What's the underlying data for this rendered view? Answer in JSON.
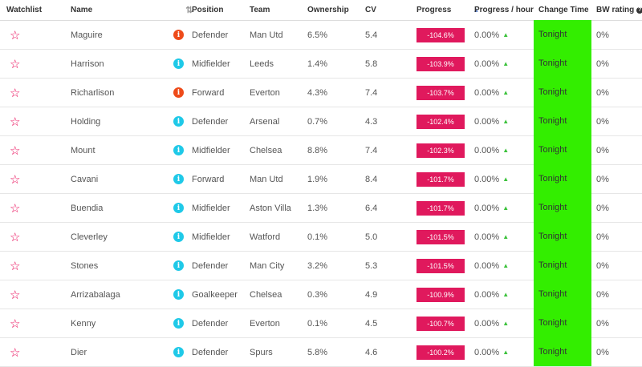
{
  "header": {
    "watchlist": "Watchlist",
    "name": "Name",
    "position": "Position",
    "team": "Team",
    "ownership": "Ownership",
    "cv": "CV",
    "progress": "Progress",
    "progress_hour": "Progress / hour",
    "change_time": "Change Time",
    "bw_rating": "BW rating",
    "sort_icon": "triangle-up",
    "help_icon": "?"
  },
  "colors": {
    "star": "#e90052",
    "progress_badge": "#e0195d",
    "change_time_bg": "#33ee00",
    "info_red": "#ee4b1a",
    "info_cyan": "#1fc9e8",
    "up_arrow": "#3cc23c"
  },
  "rows": [
    {
      "name": "Maguire",
      "info": "red",
      "position": "Defender",
      "team": "Man Utd",
      "ownership": "6.5%",
      "cv": "5.4",
      "progress": "-104.6%",
      "progress_hour": "0.00%",
      "change_time": "Tonight",
      "bw": "0%"
    },
    {
      "name": "Harrison",
      "info": "cyan",
      "position": "Midfielder",
      "team": "Leeds",
      "ownership": "1.4%",
      "cv": "5.8",
      "progress": "-103.9%",
      "progress_hour": "0.00%",
      "change_time": "Tonight",
      "bw": "0%"
    },
    {
      "name": "Richarlison",
      "info": "red",
      "position": "Forward",
      "team": "Everton",
      "ownership": "4.3%",
      "cv": "7.4",
      "progress": "-103.7%",
      "progress_hour": "0.00%",
      "change_time": "Tonight",
      "bw": "0%"
    },
    {
      "name": "Holding",
      "info": "cyan",
      "position": "Defender",
      "team": "Arsenal",
      "ownership": "0.7%",
      "cv": "4.3",
      "progress": "-102.4%",
      "progress_hour": "0.00%",
      "change_time": "Tonight",
      "bw": "0%"
    },
    {
      "name": "Mount",
      "info": "cyan",
      "position": "Midfielder",
      "team": "Chelsea",
      "ownership": "8.8%",
      "cv": "7.4",
      "progress": "-102.3%",
      "progress_hour": "0.00%",
      "change_time": "Tonight",
      "bw": "0%"
    },
    {
      "name": "Cavani",
      "info": "cyan",
      "position": "Forward",
      "team": "Man Utd",
      "ownership": "1.9%",
      "cv": "8.4",
      "progress": "-101.7%",
      "progress_hour": "0.00%",
      "change_time": "Tonight",
      "bw": "0%"
    },
    {
      "name": "Buendia",
      "info": "cyan",
      "position": "Midfielder",
      "team": "Aston Villa",
      "ownership": "1.3%",
      "cv": "6.4",
      "progress": "-101.7%",
      "progress_hour": "0.00%",
      "change_time": "Tonight",
      "bw": "0%"
    },
    {
      "name": "Cleverley",
      "info": "cyan",
      "position": "Midfielder",
      "team": "Watford",
      "ownership": "0.1%",
      "cv": "5.0",
      "progress": "-101.5%",
      "progress_hour": "0.00%",
      "change_time": "Tonight",
      "bw": "0%"
    },
    {
      "name": "Stones",
      "info": "cyan",
      "position": "Defender",
      "team": "Man City",
      "ownership": "3.2%",
      "cv": "5.3",
      "progress": "-101.5%",
      "progress_hour": "0.00%",
      "change_time": "Tonight",
      "bw": "0%"
    },
    {
      "name": "Arrizabalaga",
      "info": "cyan",
      "position": "Goalkeeper",
      "team": "Chelsea",
      "ownership": "0.3%",
      "cv": "4.9",
      "progress": "-100.9%",
      "progress_hour": "0.00%",
      "change_time": "Tonight",
      "bw": "0%"
    },
    {
      "name": "Kenny",
      "info": "cyan",
      "position": "Defender",
      "team": "Everton",
      "ownership": "0.1%",
      "cv": "4.5",
      "progress": "-100.7%",
      "progress_hour": "0.00%",
      "change_time": "Tonight",
      "bw": "0%"
    },
    {
      "name": "Dier",
      "info": "cyan",
      "position": "Defender",
      "team": "Spurs",
      "ownership": "5.8%",
      "cv": "4.6",
      "progress": "-100.2%",
      "progress_hour": "0.00%",
      "change_time": "Tonight",
      "bw": "0%"
    }
  ]
}
